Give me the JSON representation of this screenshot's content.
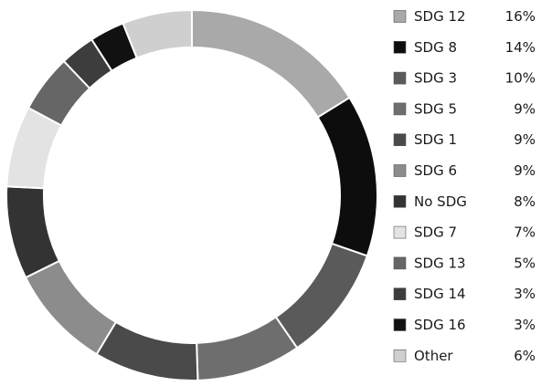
{
  "chart_data": {
    "type": "pie",
    "donut": true,
    "title": "",
    "start_angle_deg": 0,
    "direction": "clockwise",
    "segment_border_color": "#ffffff",
    "legend_position": "right",
    "slices": [
      {
        "label": "SDG 12",
        "value": 16,
        "value_label": "16%",
        "color": "#a9a9a9"
      },
      {
        "label": "SDG 8",
        "value": 14,
        "value_label": "14%",
        "color": "#0d0d0d"
      },
      {
        "label": "SDG 3",
        "value": 10,
        "value_label": "10%",
        "color": "#5a5a5a"
      },
      {
        "label": "SDG 5",
        "value": 9,
        "value_label": "9%",
        "color": "#6e6e6e"
      },
      {
        "label": "SDG 1",
        "value": 9,
        "value_label": "9%",
        "color": "#4a4a4a"
      },
      {
        "label": "SDG 6",
        "value": 9,
        "value_label": "9%",
        "color": "#8c8c8c"
      },
      {
        "label": "No SDG",
        "value": 8,
        "value_label": "8%",
        "color": "#333333"
      },
      {
        "label": "SDG 7",
        "value": 7,
        "value_label": "7%",
        "color": "#e3e3e3"
      },
      {
        "label": "SDG 13",
        "value": 5,
        "value_label": "5%",
        "color": "#666666"
      },
      {
        "label": "SDG 14",
        "value": 3,
        "value_label": "3%",
        "color": "#3d3d3d"
      },
      {
        "label": "SDG 16",
        "value": 3,
        "value_label": "3%",
        "color": "#111111"
      },
      {
        "label": "Other",
        "value": 6,
        "value_label": "6%",
        "color": "#cfcfcf"
      }
    ]
  }
}
